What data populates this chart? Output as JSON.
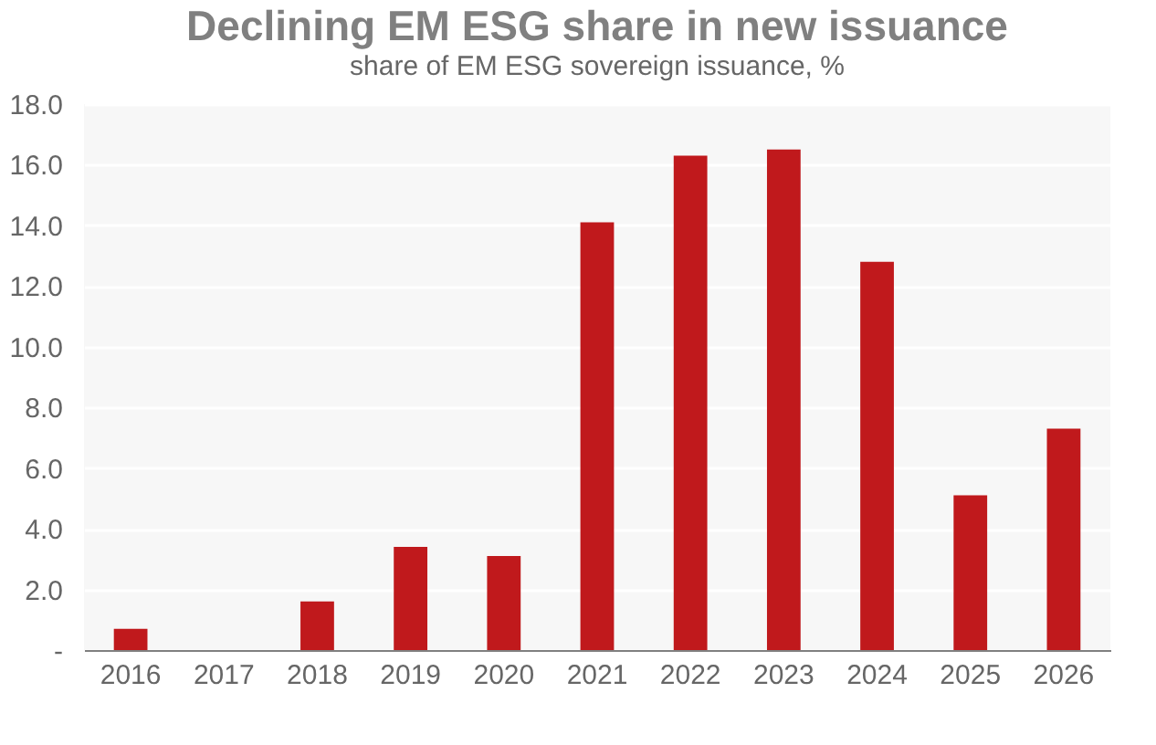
{
  "chart_data": {
    "type": "bar",
    "title": "Declining EM ESG share in new issuance",
    "subtitle": "share of EM ESG sovereign issuance, %",
    "categories": [
      "2016",
      "2017",
      "2018",
      "2019",
      "2020",
      "2021",
      "2022",
      "2023",
      "2024",
      "2025",
      "2026"
    ],
    "values": [
      0.7,
      0,
      1.6,
      3.4,
      3.1,
      14.1,
      16.3,
      16.5,
      12.8,
      5.1,
      7.3
    ],
    "color": "#c0191c",
    "ylim": [
      0,
      18
    ],
    "yticks": [
      {
        "value": 0,
        "label": "-"
      },
      {
        "value": 2,
        "label": "2.0"
      },
      {
        "value": 4,
        "label": "4.0"
      },
      {
        "value": 6,
        "label": "6.0"
      },
      {
        "value": 8,
        "label": "8.0"
      },
      {
        "value": 10,
        "label": "10.0"
      },
      {
        "value": 12,
        "label": "12.0"
      },
      {
        "value": 14,
        "label": "14.0"
      },
      {
        "value": 16,
        "label": "16.0"
      },
      {
        "value": 18,
        "label": "18.0"
      }
    ],
    "grid": "y"
  }
}
